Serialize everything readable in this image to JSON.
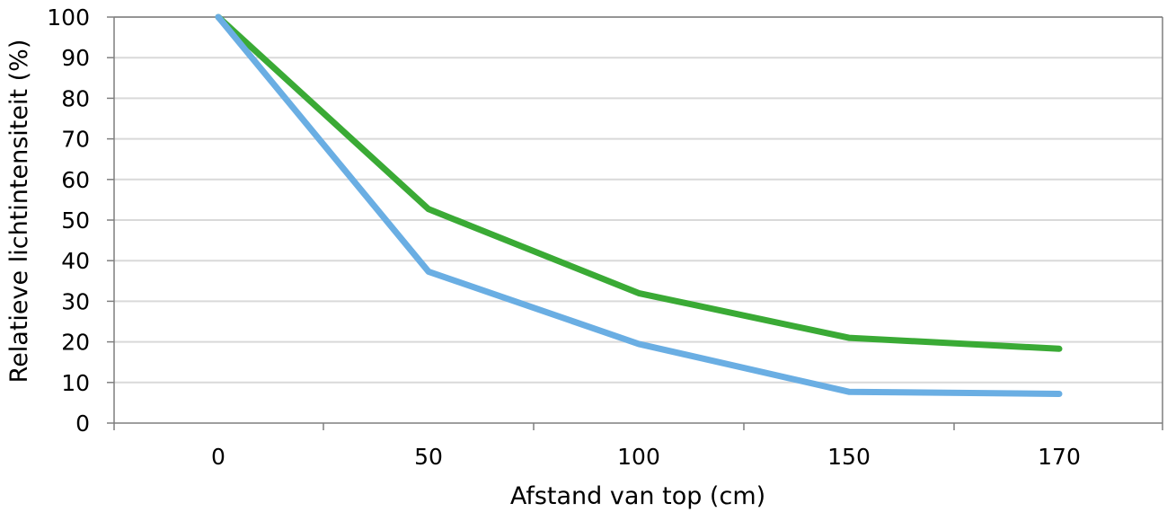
{
  "chart_data": {
    "type": "line",
    "title": "",
    "xlabel": "Afstand van top (cm)",
    "ylabel": "Relatieve lichtintensiteit (%)",
    "categories": [
      "0",
      "50",
      "100",
      "150",
      "170"
    ],
    "ylim": [
      0,
      100
    ],
    "yticks": [
      "0",
      "10",
      "20",
      "30",
      "40",
      "50",
      "60",
      "70",
      "80",
      "90",
      "100"
    ],
    "grid": true,
    "legend": "none",
    "series": [
      {
        "color": "#3aaa35",
        "values": [
          100,
          52.7,
          32,
          21,
          18.3
        ]
      },
      {
        "color": "#6aaee3",
        "values": [
          100,
          37.3,
          19.5,
          7.7,
          7.2
        ]
      }
    ]
  }
}
